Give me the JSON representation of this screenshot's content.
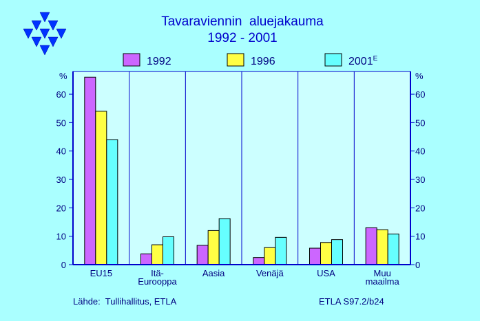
{
  "title_line1": "Tavaraviennin  aluejakauma",
  "title_line2": "1992 - 2001",
  "source": "Lähde:  Tullihallitus, ETLA",
  "code": "ETLA S97.2/b24",
  "colors": {
    "background": "#aaffff",
    "plot_background": "#ccffff",
    "title": "#0000cc",
    "axis": "#0000cc",
    "text": "#000080",
    "logo": "#0033ff"
  },
  "logo": "triangle-logo",
  "chart_data": {
    "type": "bar",
    "title": "Tavaraviennin  aluejakauma 1992 - 2001",
    "ylabel": "%",
    "ylabel_right": "%",
    "ylim": [
      0,
      68
    ],
    "yticks": [
      0,
      10,
      20,
      30,
      40,
      50,
      60
    ],
    "grid": "vertical",
    "legend_position": "top",
    "categories": [
      [
        "EU15"
      ],
      [
        "Itä-",
        "Eurooppa"
      ],
      [
        "Aasia"
      ],
      [
        "Venäjä"
      ],
      [
        "USA"
      ],
      [
        "Muu",
        "maailma"
      ]
    ],
    "series": [
      {
        "name": "1992",
        "color": "#cc66ff",
        "values": [
          66,
          3.8,
          6.8,
          2.5,
          5.8,
          13
        ]
      },
      {
        "name": "1996",
        "color": "#ffff44",
        "values": [
          54,
          7,
          12,
          6,
          7.8,
          12.3
        ]
      },
      {
        "name": "2001",
        "name_sup": "E",
        "color": "#66ffff",
        "values": [
          44,
          9.8,
          16.2,
          9.6,
          8.8,
          10.8
        ]
      }
    ]
  }
}
